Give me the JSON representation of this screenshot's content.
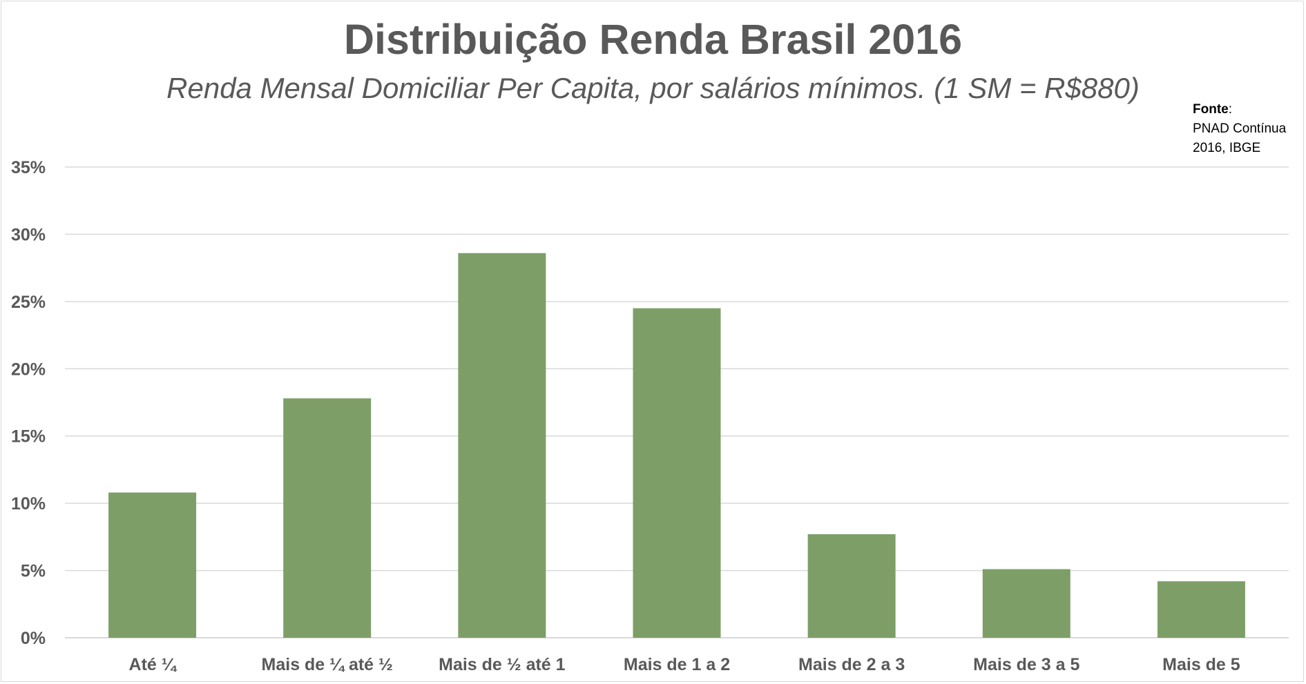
{
  "title": "Distribuição Renda Brasil 2016",
  "subtitle": "Renda Mensal Domiciliar Per Capita, por salários mínimos. (1 SM = R$880)",
  "source": {
    "label": "Fonte",
    "separator": ":",
    "line1": "PNAD Contínua",
    "line2": "2016, IBGE"
  },
  "colors": {
    "bar": "#7d9f67",
    "grid": "#d9d9d9",
    "axis_text": "#595959"
  },
  "chart_data": {
    "type": "bar",
    "categories": [
      "Até ¼",
      "Mais de ¼ até ½",
      "Mais de ½ até 1",
      "Mais de 1 a 2",
      "Mais de 2 a 3",
      "Mais de 3 a 5",
      "Mais de 5"
    ],
    "values": [
      10.8,
      17.8,
      28.6,
      24.5,
      7.7,
      5.1,
      4.2
    ],
    "ylim": [
      0,
      35
    ],
    "yticks": [
      "0%",
      "5%",
      "10%",
      "15%",
      "20%",
      "25%",
      "30%",
      "35%"
    ],
    "grid": true,
    "legend": "none"
  }
}
